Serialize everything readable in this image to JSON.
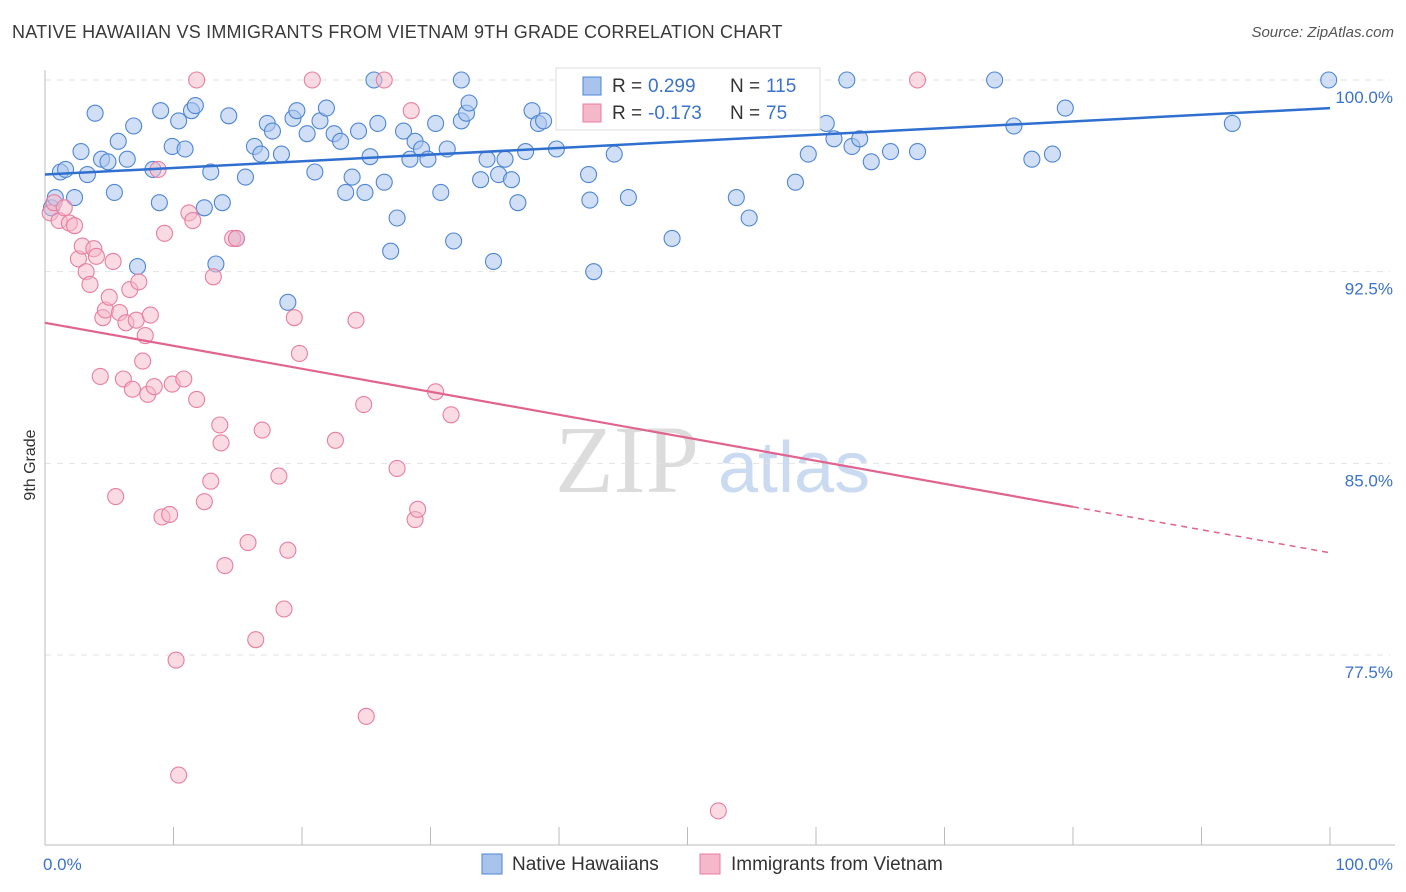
{
  "title": "NATIVE HAWAIIAN VS IMMIGRANTS FROM VIETNAM 9TH GRADE CORRELATION CHART",
  "source": "Source: ZipAtlas.com",
  "watermark": {
    "zip": "ZIP",
    "atlas": "atlas"
  },
  "colors": {
    "blue_fill": "#a9c4ec",
    "blue_stroke": "#4f86d4",
    "blue_line": "#2e6fcf",
    "pink_fill": "#f5b7ca",
    "pink_stroke": "#e87ea0",
    "pink_line": "#e0648f",
    "tick_text": "#3b73c9",
    "grid": "#e2e2e2"
  },
  "stats_legend": {
    "rows": [
      {
        "r_label": "R = ",
        "r_value": " 0.299",
        "n_label": "N = ",
        "n_value": "115",
        "series": "blue"
      },
      {
        "r_label": "R = ",
        "r_value": "-0.173",
        "n_label": "N = ",
        "n_value": " 75",
        "series": "pink"
      }
    ]
  },
  "bottom_legend": [
    {
      "label": "Native Hawaiians",
      "series": "blue"
    },
    {
      "label": "Immigrants from Vietnam",
      "series": "pink"
    }
  ],
  "chart_data": {
    "type": "scatter",
    "ylabel": "9th Grade",
    "xlabel": "",
    "x_tick_labels": [
      "0.0%",
      "100.0%"
    ],
    "y_tick_labels": [
      "100.0%",
      "92.5%",
      "85.0%",
      "77.5%"
    ],
    "y_ticks": [
      100.0,
      92.5,
      85.0,
      77.5
    ],
    "xlim": [
      0,
      100
    ],
    "ylim": [
      71.0,
      100.6
    ],
    "grid": true,
    "series": [
      {
        "name": "Native Hawaiians",
        "color": "#4f86d4",
        "trend": {
          "x0": 0,
          "y0": 96.3,
          "x1": 100,
          "y1": 98.9
        },
        "points": [
          [
            0.5,
            95.0
          ],
          [
            0.8,
            95.4
          ],
          [
            1.2,
            96.4
          ],
          [
            1.6,
            96.5
          ],
          [
            2.3,
            95.4
          ],
          [
            2.8,
            97.2
          ],
          [
            3.3,
            96.3
          ],
          [
            3.9,
            98.7
          ],
          [
            4.4,
            96.9
          ],
          [
            4.9,
            96.8
          ],
          [
            5.4,
            95.6
          ],
          [
            5.7,
            97.6
          ],
          [
            6.4,
            96.9
          ],
          [
            6.9,
            98.2
          ],
          [
            7.2,
            92.7
          ],
          [
            8.4,
            96.5
          ],
          [
            8.9,
            95.2
          ],
          [
            9.0,
            98.8
          ],
          [
            9.9,
            97.4
          ],
          [
            10.4,
            98.4
          ],
          [
            10.9,
            97.3
          ],
          [
            11.4,
            98.8
          ],
          [
            11.7,
            99.0
          ],
          [
            12.4,
            95.0
          ],
          [
            12.9,
            96.4
          ],
          [
            13.3,
            92.8
          ],
          [
            13.8,
            95.2
          ],
          [
            14.3,
            98.6
          ],
          [
            14.9,
            93.8
          ],
          [
            15.6,
            96.2
          ],
          [
            16.3,
            97.4
          ],
          [
            16.8,
            97.1
          ],
          [
            17.3,
            98.3
          ],
          [
            17.7,
            98.0
          ],
          [
            18.4,
            97.1
          ],
          [
            18.9,
            91.3
          ],
          [
            19.3,
            98.5
          ],
          [
            19.6,
            98.8
          ],
          [
            20.4,
            97.9
          ],
          [
            21.0,
            96.4
          ],
          [
            21.4,
            98.4
          ],
          [
            21.9,
            98.9
          ],
          [
            22.5,
            97.9
          ],
          [
            23.0,
            97.6
          ],
          [
            23.4,
            95.6
          ],
          [
            23.9,
            96.2
          ],
          [
            24.4,
            98.0
          ],
          [
            24.9,
            95.6
          ],
          [
            25.3,
            97.0
          ],
          [
            25.9,
            98.3
          ],
          [
            26.4,
            96.0
          ],
          [
            26.9,
            93.3
          ],
          [
            27.4,
            94.6
          ],
          [
            27.9,
            98.0
          ],
          [
            28.4,
            96.9
          ],
          [
            28.8,
            97.6
          ],
          [
            29.3,
            97.3
          ],
          [
            29.8,
            96.9
          ],
          [
            30.4,
            98.3
          ],
          [
            30.8,
            95.6
          ],
          [
            31.3,
            97.3
          ],
          [
            31.8,
            93.7
          ],
          [
            32.4,
            98.4
          ],
          [
            32.8,
            98.7
          ],
          [
            33.0,
            99.1
          ],
          [
            33.9,
            96.1
          ],
          [
            34.4,
            96.9
          ],
          [
            34.9,
            92.9
          ],
          [
            35.3,
            96.3
          ],
          [
            35.8,
            96.9
          ],
          [
            36.3,
            96.1
          ],
          [
            36.8,
            95.2
          ],
          [
            37.4,
            97.2
          ],
          [
            37.9,
            98.8
          ],
          [
            38.4,
            98.3
          ],
          [
            38.8,
            98.4
          ],
          [
            39.8,
            97.3
          ],
          [
            40.4,
            100.0
          ],
          [
            41.3,
            100.0
          ],
          [
            42.3,
            96.3
          ],
          [
            42.4,
            95.3
          ],
          [
            42.7,
            92.5
          ],
          [
            43.4,
            99.0
          ],
          [
            44.3,
            97.1
          ],
          [
            45.4,
            95.4
          ],
          [
            47.9,
            100.0
          ],
          [
            48.8,
            93.8
          ],
          [
            49.8,
            100.0
          ],
          [
            52.2,
            99.0
          ],
          [
            53.8,
            95.4
          ],
          [
            54.8,
            94.6
          ],
          [
            56.4,
            100.0
          ],
          [
            58.4,
            96.0
          ],
          [
            59.4,
            97.1
          ],
          [
            60.8,
            98.3
          ],
          [
            61.4,
            97.7
          ],
          [
            62.4,
            100.0
          ],
          [
            62.8,
            97.4
          ],
          [
            63.4,
            97.7
          ],
          [
            64.3,
            96.8
          ],
          [
            65.8,
            97.2
          ],
          [
            67.9,
            97.2
          ],
          [
            73.9,
            100.0
          ],
          [
            75.4,
            98.2
          ],
          [
            76.8,
            96.9
          ],
          [
            78.4,
            97.1
          ],
          [
            79.4,
            98.9
          ],
          [
            92.4,
            98.3
          ],
          [
            99.9,
            100.0
          ],
          [
            25.6,
            100.0
          ],
          [
            32.4,
            100.0
          ]
        ]
      },
      {
        "name": "Immigrants from Vietnam",
        "color": "#e87ea0",
        "trend": {
          "x0": 0,
          "y0": 90.5,
          "x1": 80,
          "y1": 83.3,
          "dash_to_x": 100,
          "dash_to_y": 81.5
        },
        "points": [
          [
            0.4,
            94.8
          ],
          [
            0.7,
            95.2
          ],
          [
            1.1,
            94.5
          ],
          [
            1.5,
            95.0
          ],
          [
            1.9,
            94.4
          ],
          [
            2.3,
            94.3
          ],
          [
            2.6,
            93.0
          ],
          [
            2.9,
            93.5
          ],
          [
            3.2,
            92.5
          ],
          [
            3.5,
            92.0
          ],
          [
            3.8,
            93.4
          ],
          [
            4.0,
            93.1
          ],
          [
            4.3,
            88.4
          ],
          [
            4.5,
            90.7
          ],
          [
            4.7,
            91.0
          ],
          [
            5.0,
            91.5
          ],
          [
            5.3,
            92.9
          ],
          [
            5.5,
            83.7
          ],
          [
            5.8,
            90.9
          ],
          [
            6.1,
            88.3
          ],
          [
            6.3,
            90.5
          ],
          [
            6.6,
            91.8
          ],
          [
            6.8,
            87.9
          ],
          [
            7.1,
            90.6
          ],
          [
            7.3,
            92.1
          ],
          [
            7.6,
            89.0
          ],
          [
            7.8,
            90.0
          ],
          [
            8.0,
            87.7
          ],
          [
            8.2,
            90.8
          ],
          [
            8.5,
            88.0
          ],
          [
            8.8,
            96.5
          ],
          [
            9.1,
            82.9
          ],
          [
            9.3,
            94.0
          ],
          [
            9.7,
            83.0
          ],
          [
            9.9,
            88.1
          ],
          [
            10.2,
            77.3
          ],
          [
            10.4,
            72.8
          ],
          [
            10.8,
            88.3
          ],
          [
            11.2,
            94.8
          ],
          [
            11.5,
            94.5
          ],
          [
            11.8,
            87.5
          ],
          [
            12.4,
            83.5
          ],
          [
            12.9,
            84.3
          ],
          [
            13.1,
            92.3
          ],
          [
            13.6,
            86.5
          ],
          [
            13.7,
            85.8
          ],
          [
            14.0,
            81.0
          ],
          [
            14.6,
            93.8
          ],
          [
            14.9,
            93.8
          ],
          [
            15.8,
            81.9
          ],
          [
            16.4,
            78.1
          ],
          [
            16.9,
            86.3
          ],
          [
            18.2,
            84.5
          ],
          [
            18.6,
            79.3
          ],
          [
            18.9,
            81.6
          ],
          [
            19.4,
            90.7
          ],
          [
            19.8,
            89.3
          ],
          [
            22.6,
            85.9
          ],
          [
            24.2,
            90.6
          ],
          [
            24.8,
            87.3
          ],
          [
            25.0,
            75.1
          ],
          [
            26.4,
            100.0
          ],
          [
            27.4,
            84.8
          ],
          [
            28.5,
            98.8
          ],
          [
            28.8,
            82.8
          ],
          [
            29.0,
            83.2
          ],
          [
            30.4,
            87.8
          ],
          [
            31.6,
            86.9
          ],
          [
            41.3,
            99.0
          ],
          [
            52.4,
            71.4
          ],
          [
            67.9,
            100.0
          ],
          [
            11.8,
            100.0
          ],
          [
            20.8,
            100.0
          ],
          [
            45.0,
            99.0
          ],
          [
            50.0,
            100.0
          ]
        ]
      }
    ]
  }
}
